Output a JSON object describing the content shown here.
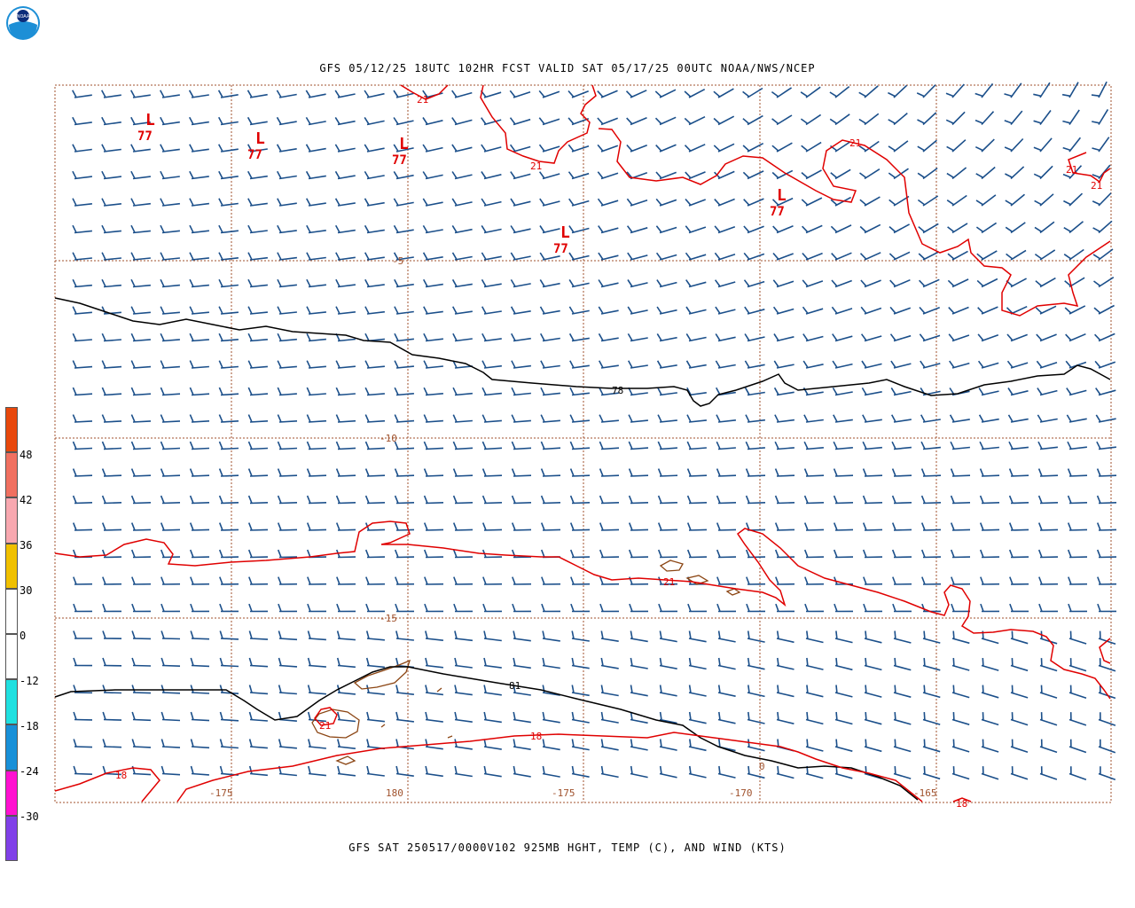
{
  "header": {
    "title": "GFS 05/12/25 18UTC 102HR FCST VALID SAT 05/17/25 00UTC NOAA/NWS/NCEP",
    "footer": "GFS SAT 250517/0000V102 925MB HGHT, TEMP (C), AND WIND (KTS)",
    "logo_text": "NOAA"
  },
  "map": {
    "lat_labels": [
      "-5",
      "-10",
      "-15"
    ],
    "lon_labels": [
      "-175",
      "180",
      "-175",
      "-170",
      "-165"
    ],
    "height_contour_labels": [
      "78",
      "81"
    ],
    "temp_contour_labels": [
      "21",
      "21",
      "21",
      "21",
      "21",
      "21",
      "21",
      "18",
      "18",
      "18"
    ],
    "low_centers": [
      {
        "symbol": "L",
        "value": "77"
      },
      {
        "symbol": "L",
        "value": "77"
      },
      {
        "symbol": "L",
        "value": "77"
      },
      {
        "symbol": "L",
        "value": "77"
      },
      {
        "symbol": "L",
        "value": "77"
      }
    ],
    "misc_label": "0"
  },
  "colorbar": {
    "labels": [
      "48",
      "42",
      "36",
      "30",
      "0",
      "-12",
      "-18",
      "-24",
      "-30"
    ],
    "colors": [
      "#e8480c",
      "#f07060",
      "#f8a8b0",
      "#f0c000",
      "#ffffff",
      "#ffffff",
      "#20e0e0",
      "#1890d8",
      "#ff10d0",
      "#8040e8"
    ]
  },
  "colors": {
    "wind_barb": "#1b4f8a",
    "temp_contour": "#e00000",
    "height_contour": "#000000",
    "grid": "#a0522d",
    "coast": "#8b4513"
  }
}
